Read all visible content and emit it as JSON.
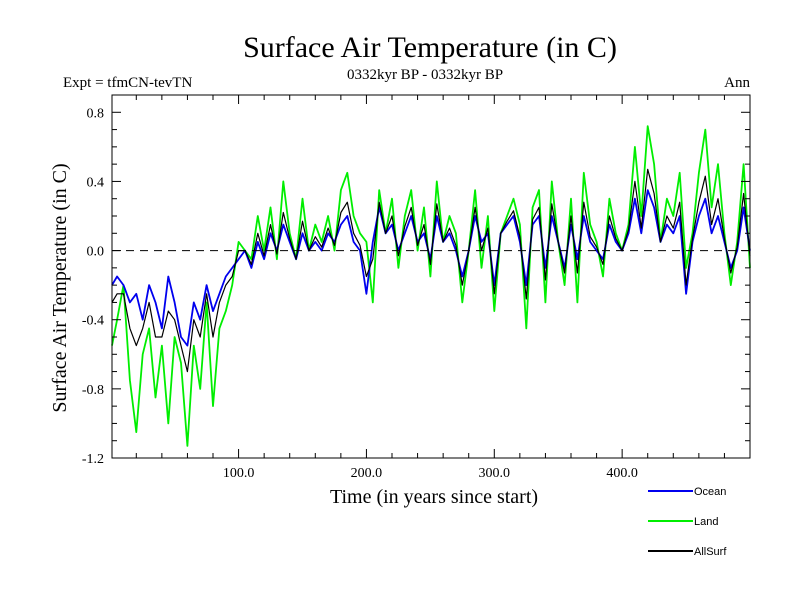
{
  "chart_data": {
    "type": "line",
    "title": "Surface Air Temperature (in C)",
    "subtitle": "0332kyr BP - 0332kyr BP",
    "left_note": "Expt = tfmCN-tevTN",
    "right_note": "Ann",
    "xlabel": "Time (in years since start)",
    "ylabel": "Surface Air Temperature (in C)",
    "xlim": [
      1,
      500
    ],
    "ylim": [
      -1.2,
      0.9
    ],
    "x_ticks": [
      {
        "value": 100,
        "label": "100.0"
      },
      {
        "value": 200,
        "label": "200.0"
      },
      {
        "value": 300,
        "label": "300.0"
      },
      {
        "value": 400,
        "label": "400.0"
      }
    ],
    "y_ticks": [
      {
        "value": 0.8,
        "label": "0.8"
      },
      {
        "value": 0.4,
        "label": "0.4"
      },
      {
        "value": 0.0,
        "label": "0.0"
      },
      {
        "value": -0.4,
        "label": "-0.4"
      },
      {
        "value": -0.8,
        "label": "-0.8"
      },
      {
        "value": -1.2,
        "label": "-1.2"
      }
    ],
    "zero_line": true,
    "grid": false,
    "legend_position": "bottom-right",
    "series": [
      {
        "name": "Land",
        "color": "#00ee00",
        "x": [
          1,
          5,
          10,
          15,
          20,
          25,
          30,
          35,
          40,
          45,
          50,
          55,
          60,
          65,
          70,
          75,
          80,
          85,
          90,
          95,
          100,
          105,
          110,
          115,
          120,
          125,
          130,
          135,
          140,
          145,
          150,
          155,
          160,
          165,
          170,
          175,
          180,
          185,
          190,
          195,
          200,
          205,
          210,
          215,
          220,
          225,
          230,
          235,
          240,
          245,
          250,
          255,
          260,
          265,
          270,
          275,
          280,
          285,
          290,
          295,
          300,
          305,
          310,
          315,
          320,
          325,
          330,
          335,
          340,
          345,
          350,
          355,
          360,
          365,
          370,
          375,
          380,
          385,
          390,
          395,
          400,
          405,
          410,
          415,
          420,
          425,
          430,
          435,
          440,
          445,
          450,
          455,
          460,
          465,
          470,
          475,
          480,
          485,
          490,
          495,
          500
        ],
        "values": [
          -0.55,
          -0.4,
          -0.2,
          -0.75,
          -1.05,
          -0.6,
          -0.45,
          -0.85,
          -0.55,
          -1.0,
          -0.5,
          -0.65,
          -1.13,
          -0.55,
          -0.8,
          -0.3,
          -0.9,
          -0.45,
          -0.35,
          -0.2,
          0.05,
          0.0,
          -0.05,
          0.2,
          0.0,
          0.25,
          -0.05,
          0.4,
          0.1,
          -0.05,
          0.3,
          0.0,
          0.15,
          0.05,
          0.2,
          0.0,
          0.35,
          0.45,
          0.2,
          0.1,
          0.05,
          -0.3,
          0.35,
          0.1,
          0.3,
          -0.1,
          0.2,
          0.35,
          0.0,
          0.25,
          -0.15,
          0.4,
          0.05,
          0.2,
          0.1,
          -0.3,
          0.0,
          0.35,
          -0.1,
          0.2,
          -0.35,
          0.1,
          0.2,
          0.3,
          0.15,
          -0.45,
          0.25,
          0.35,
          -0.3,
          0.4,
          0.05,
          -0.2,
          0.3,
          -0.3,
          0.45,
          0.15,
          0.05,
          -0.15,
          0.3,
          0.1,
          0.0,
          0.15,
          0.6,
          0.2,
          0.72,
          0.5,
          0.05,
          0.3,
          0.2,
          0.45,
          -0.1,
          0.1,
          0.45,
          0.7,
          0.25,
          0.5,
          0.1,
          -0.2,
          0.05,
          0.5,
          -0.1
        ]
      },
      {
        "name": "Ocean",
        "color": "#0000ee",
        "x": [
          1,
          5,
          10,
          15,
          20,
          25,
          30,
          35,
          40,
          45,
          50,
          55,
          60,
          65,
          70,
          75,
          80,
          85,
          90,
          95,
          100,
          105,
          110,
          115,
          120,
          125,
          130,
          135,
          140,
          145,
          150,
          155,
          160,
          165,
          170,
          175,
          180,
          185,
          190,
          195,
          200,
          205,
          210,
          215,
          220,
          225,
          230,
          235,
          240,
          245,
          250,
          255,
          260,
          265,
          270,
          275,
          280,
          285,
          290,
          295,
          300,
          305,
          310,
          315,
          320,
          325,
          330,
          335,
          340,
          345,
          350,
          355,
          360,
          365,
          370,
          375,
          380,
          385,
          390,
          395,
          400,
          405,
          410,
          415,
          420,
          425,
          430,
          435,
          440,
          445,
          450,
          455,
          460,
          465,
          470,
          475,
          480,
          485,
          490,
          495,
          500
        ],
        "values": [
          -0.2,
          -0.15,
          -0.2,
          -0.3,
          -0.25,
          -0.4,
          -0.2,
          -0.3,
          -0.45,
          -0.15,
          -0.3,
          -0.5,
          -0.55,
          -0.3,
          -0.4,
          -0.2,
          -0.35,
          -0.25,
          -0.15,
          -0.1,
          -0.05,
          0.0,
          -0.1,
          0.05,
          -0.05,
          0.1,
          0.0,
          0.15,
          0.05,
          -0.05,
          0.1,
          0.0,
          0.05,
          0.0,
          0.1,
          0.05,
          0.15,
          0.2,
          0.05,
          0.0,
          -0.25,
          0.05,
          0.25,
          0.1,
          0.15,
          0.0,
          0.1,
          0.2,
          0.05,
          0.1,
          -0.05,
          0.2,
          0.05,
          0.1,
          0.0,
          -0.15,
          0.0,
          0.2,
          0.05,
          0.1,
          -0.2,
          0.1,
          0.15,
          0.2,
          0.05,
          -0.2,
          0.15,
          0.2,
          -0.1,
          0.2,
          0.05,
          -0.1,
          0.15,
          -0.05,
          0.2,
          0.05,
          0.0,
          -0.05,
          0.15,
          0.05,
          0.0,
          0.1,
          0.3,
          0.1,
          0.35,
          0.25,
          0.05,
          0.15,
          0.1,
          0.2,
          -0.25,
          0.05,
          0.2,
          0.3,
          0.1,
          0.2,
          0.05,
          -0.1,
          0.0,
          0.25,
          0.0
        ]
      },
      {
        "name": "AllSurf",
        "color": "#000000",
        "x": [
          1,
          5,
          10,
          15,
          20,
          25,
          30,
          35,
          40,
          45,
          50,
          55,
          60,
          65,
          70,
          75,
          80,
          85,
          90,
          95,
          100,
          105,
          110,
          115,
          120,
          125,
          130,
          135,
          140,
          145,
          150,
          155,
          160,
          165,
          170,
          175,
          180,
          185,
          190,
          195,
          200,
          205,
          210,
          215,
          220,
          225,
          230,
          235,
          240,
          245,
          250,
          255,
          260,
          265,
          270,
          275,
          280,
          285,
          290,
          295,
          300,
          305,
          310,
          315,
          320,
          325,
          330,
          335,
          340,
          345,
          350,
          355,
          360,
          365,
          370,
          375,
          380,
          385,
          390,
          395,
          400,
          405,
          410,
          415,
          420,
          425,
          430,
          435,
          440,
          445,
          450,
          455,
          460,
          465,
          470,
          475,
          480,
          485,
          490,
          495,
          500
        ],
        "values": [
          -0.3,
          -0.25,
          -0.25,
          -0.45,
          -0.55,
          -0.45,
          -0.3,
          -0.5,
          -0.5,
          -0.35,
          -0.4,
          -0.55,
          -0.7,
          -0.4,
          -0.5,
          -0.25,
          -0.5,
          -0.3,
          -0.2,
          -0.15,
          0.0,
          0.0,
          -0.08,
          0.1,
          -0.03,
          0.15,
          -0.02,
          0.22,
          0.07,
          -0.05,
          0.17,
          0.0,
          0.08,
          0.02,
          0.13,
          0.03,
          0.22,
          0.28,
          0.1,
          0.03,
          -0.15,
          -0.05,
          0.28,
          0.1,
          0.2,
          -0.03,
          0.14,
          0.25,
          0.03,
          0.15,
          -0.08,
          0.27,
          0.05,
          0.13,
          0.03,
          -0.2,
          0.0,
          0.25,
          0.0,
          0.13,
          -0.25,
          0.1,
          0.17,
          0.23,
          0.08,
          -0.28,
          0.18,
          0.25,
          -0.17,
          0.27,
          0.05,
          -0.13,
          0.2,
          -0.13,
          0.28,
          0.08,
          0.02,
          -0.08,
          0.2,
          0.07,
          0.0,
          0.12,
          0.4,
          0.13,
          0.47,
          0.33,
          0.05,
          0.2,
          0.13,
          0.28,
          -0.2,
          0.07,
          0.28,
          0.43,
          0.15,
          0.3,
          0.07,
          -0.13,
          0.02,
          0.33,
          -0.03
        ]
      }
    ]
  }
}
